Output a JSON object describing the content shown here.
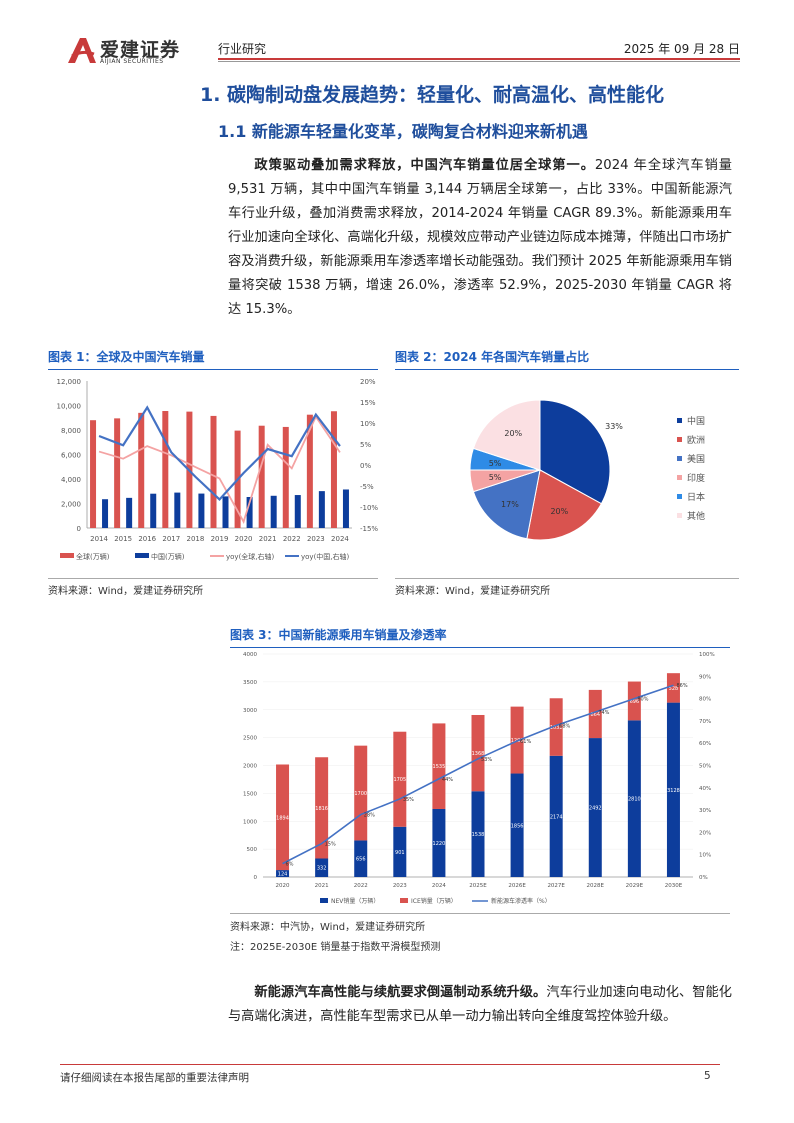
{
  "header": {
    "brand": "爱建证券",
    "brand_en": "AIJIAN SECURITIES",
    "section": "行业研究",
    "date": "2025 年 09 月 28 日",
    "accent": "#c83a3a"
  },
  "h1": "1.  碳陶制动盘发展趋势：轻量化、耐高温化、高性能化",
  "h2": "1.1 新能源车轻量化变革，碳陶复合材料迎来新机遇",
  "para1": {
    "lead": "政策驱动叠加需求释放，中国汽车销量位居全球第一。",
    "body": "2024 年全球汽车销量 9,531 万辆，其中中国汽车销量 3,144 万辆居全球第一，占比 33%。中国新能源汽车行业升级，叠加消费需求释放，2014-2024 年销量 CAGR 89.3%。新能源乘用车行业加速向全球化、高端化升级，规模效应带动产业链边际成本摊薄，伴随出口市场扩容及消费升级，新能源乘用车渗透率增长动能强劲。我们预计 2025 年新能源乘用车销量将突破 1538 万辆，增速 26.0%，渗透率 52.9%，2025-2030 年销量 CAGR 将达 15.3%。"
  },
  "para2": {
    "lead": "新能源汽车高性能与续航要求倒逼制动系统升级。",
    "body": "汽车行业加速向电动化、智能化与高端化演进，高性能车型需求已从单一动力输出转向全维度驾控体验升级。"
  },
  "figures": {
    "fig1_title": "图表 1：全球及中国汽车销量",
    "fig1_source": "资料来源：Wind，爱建证券研究所",
    "fig2_title": "图表 2：2024 年各国汽车销量占比",
    "fig2_source": "资料来源：Wind，爱建证券研究所",
    "fig3_title": "图表 3：中国新能源乘用车销量及渗透率",
    "fig3_source": "资料来源：中汽协，Wind，爱建证券研究所",
    "fig3_note": "注：2025E-2030E 销量基于指数平滑模型预测"
  },
  "footer": {
    "disclaimer": "请仔细阅读在本报告尾部的重要法律声明",
    "page": "5"
  },
  "chart_data": [
    {
      "type": "bar",
      "categories": [
        "2014",
        "2015",
        "2016",
        "2017",
        "2018",
        "2019",
        "2020",
        "2021",
        "2022",
        "2023",
        "2024"
      ],
      "series": [
        {
          "name": "全球(万辆)",
          "kind": "bar",
          "axis": "left",
          "color": "#d9534f",
          "values": [
            8800,
            8950,
            9400,
            9550,
            9500,
            9150,
            7950,
            8350,
            8250,
            9250,
            9531
          ]
        },
        {
          "name": "中国(万辆)",
          "kind": "bar",
          "axis": "left",
          "color": "#0d3d9c",
          "values": [
            2350,
            2460,
            2800,
            2890,
            2810,
            2580,
            2530,
            2630,
            2690,
            3010,
            3144
          ]
        },
        {
          "name": "yoy(全球,右轴)",
          "kind": "line",
          "axis": "right",
          "color": "#f4a3a3",
          "values": [
            3.2,
            1.5,
            4.5,
            2.3,
            -0.5,
            -3.2,
            -13.5,
            4.8,
            -0.8,
            11.5,
            3.0
          ]
        },
        {
          "name": "yoy(中国,右轴)",
          "kind": "line",
          "axis": "right",
          "color": "#4472c4",
          "values": [
            6.9,
            4.7,
            13.7,
            3.0,
            -2.8,
            -8.2,
            -1.9,
            3.8,
            2.1,
            12.0,
            4.5
          ]
        }
      ],
      "ylim": [
        0,
        12000
      ],
      "yticks": [
        "0",
        "2,000",
        "4,000",
        "6,000",
        "8,000",
        "10,000",
        "12,000"
      ],
      "y2lim": [
        -15,
        20
      ],
      "y2ticks": [
        "-15%",
        "-10%",
        "-5%",
        "0%",
        "5%",
        "10%",
        "15%",
        "20%"
      ],
      "legend": "bottom"
    },
    {
      "type": "pie",
      "labels": [
        "中国",
        "欧洲",
        "美国",
        "印度",
        "日本",
        "其他"
      ],
      "values": [
        33,
        20,
        17,
        5,
        5,
        20
      ],
      "data_labels": [
        "33%",
        "20%",
        "17%",
        "5%",
        "5%",
        "20%"
      ],
      "colors": [
        "#0d3d9c",
        "#d9534f",
        "#4472c4",
        "#f4a3a3",
        "#2e8be6",
        "#fbe0e3"
      ],
      "legend": "right"
    },
    {
      "type": "bar",
      "stacked": true,
      "categories": [
        "2020",
        "2021",
        "2022",
        "2023",
        "2024",
        "2025E",
        "2026E",
        "2027E",
        "2028E",
        "2029E",
        "2030E"
      ],
      "series": [
        {
          "name": "NEV销量（万辆）",
          "kind": "bar",
          "color": "#0d3d9c",
          "values": [
            124,
            332,
            656,
            901,
            1220,
            1538,
            1856,
            2174,
            2492,
            2810,
            3128
          ]
        },
        {
          "name": "ICE销量（万辆）",
          "kind": "bar",
          "color": "#d9534f",
          "values": [
            1894,
            1816,
            1700,
            1705,
            1535,
            1368,
            1200,
            1032,
            864,
            696,
            528
          ]
        },
        {
          "name": "新能源车渗透率（%）",
          "kind": "line",
          "axis": "right",
          "color": "#4472c4",
          "values": [
            6,
            15,
            28,
            35,
            44,
            53,
            61,
            68,
            74,
            80,
            86
          ],
          "data_labels": [
            "6%",
            "15%",
            "28%",
            "35%",
            "44%",
            "53%",
            "61%",
            "68%",
            "74%",
            "80%",
            "86%"
          ]
        }
      ],
      "ylim": [
        0,
        4000
      ],
      "yticks": [
        "0",
        "500",
        "1000",
        "1500",
        "2000",
        "2500",
        "3000",
        "3500",
        "4000"
      ],
      "y2lim": [
        0,
        100
      ],
      "y2ticks": [
        "0%",
        "10%",
        "20%",
        "30%",
        "40%",
        "50%",
        "60%",
        "70%",
        "80%",
        "90%",
        "100%"
      ],
      "legend": "bottom"
    }
  ]
}
